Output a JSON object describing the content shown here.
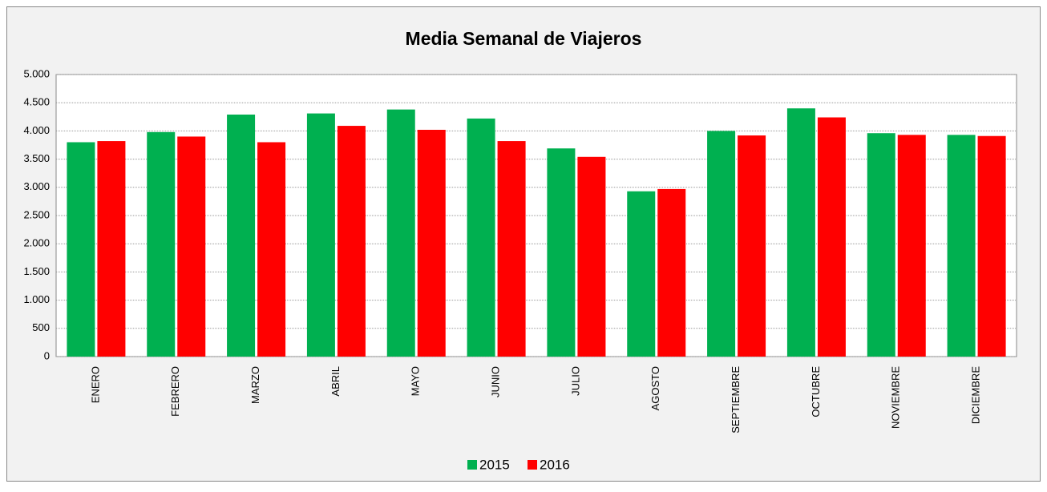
{
  "chart_data": {
    "type": "bar",
    "title": "Media Semanal de Viajeros",
    "categories": [
      "ENERO",
      "FEBRERO",
      "MARZO",
      "ABRIL",
      "MAYO",
      "JUNIO",
      "JULIO",
      "AGOSTO",
      "SEPTIEMBRE",
      "OCTUBRE",
      "NOVIEMBRE",
      "DICIEMBRE"
    ],
    "series": [
      {
        "name": "2015",
        "color": "#00b050",
        "values": [
          3800,
          3980,
          4290,
          4310,
          4380,
          4220,
          3690,
          2930,
          4000,
          4400,
          3960,
          3930
        ]
      },
      {
        "name": "2016",
        "color": "#ff0000",
        "values": [
          3820,
          3900,
          3800,
          4090,
          4020,
          3820,
          3540,
          2970,
          3920,
          4240,
          3930,
          3910
        ]
      }
    ],
    "ylim": [
      0,
      5000
    ],
    "yticks": [
      0,
      500,
      {
        "value": 1000,
        "label": "1.000"
      },
      {
        "value": 1500,
        "label": "1.500"
      },
      {
        "value": 2000,
        "label": "2.000"
      },
      {
        "value": 2500,
        "label": "2.500"
      },
      {
        "value": 3000,
        "label": "3.000"
      },
      {
        "value": 3500,
        "label": "3.500"
      },
      {
        "value": 4000,
        "label": "4.000"
      },
      {
        "value": 4500,
        "label": "4.500"
      },
      {
        "value": 5000,
        "label": "5.000"
      }
    ],
    "grid": true,
    "legend": "bottom"
  }
}
